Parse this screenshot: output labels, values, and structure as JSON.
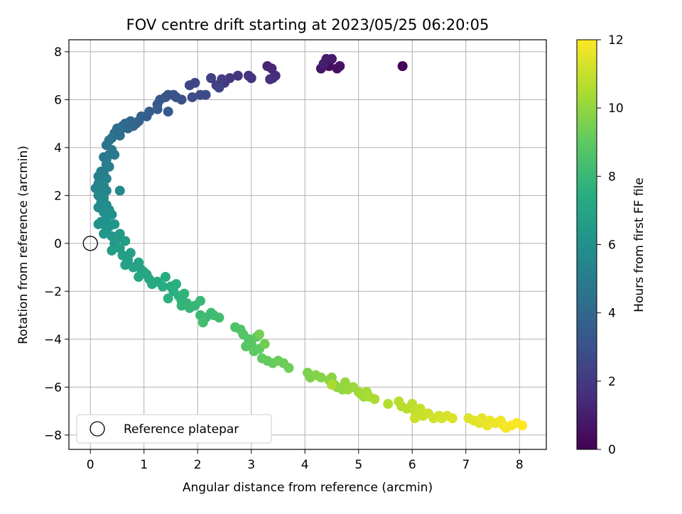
{
  "chart_data": {
    "type": "scatter",
    "title": "FOV centre drift starting at 2023/05/25 06:20:05",
    "xlabel": "Angular distance from reference (arcmin)",
    "ylabel": "Rotation from reference (arcmin)",
    "xlim": [
      -0.4,
      8.5
    ],
    "ylim": [
      -8.6,
      8.5
    ],
    "xticks": [
      "0",
      "1",
      "2",
      "3",
      "4",
      "5",
      "6",
      "7",
      "8"
    ],
    "yticks": [
      "−8",
      "−6",
      "−4",
      "−2",
      "0",
      "2",
      "4",
      "6",
      "8"
    ],
    "grid": true,
    "legend_position": "lower-left",
    "reference_point": {
      "label": "Reference platepar",
      "x": 0.0,
      "y": 0.0
    },
    "colorbar": {
      "label": "Hours from first FF file",
      "range": [
        0,
        12
      ],
      "ticks": [
        "0",
        "2",
        "4",
        "6",
        "8",
        "10",
        "12"
      ],
      "colormap": "viridis"
    },
    "series": [
      {
        "points": [
          [
            5.82,
            7.4,
            0.1
          ],
          [
            4.45,
            7.4,
            0.4
          ],
          [
            4.6,
            7.3,
            0.5
          ],
          [
            4.65,
            7.4,
            0.6
          ],
          [
            4.3,
            7.3,
            0.7
          ],
          [
            4.5,
            7.7,
            0.8
          ],
          [
            4.4,
            7.7,
            0.9
          ],
          [
            4.35,
            7.5,
            1.0
          ],
          [
            3.3,
            7.4,
            1.2
          ],
          [
            3.38,
            7.3,
            1.3
          ],
          [
            3.45,
            7.0,
            1.4
          ],
          [
            3.4,
            6.9,
            1.5
          ],
          [
            3.35,
            6.85,
            1.6
          ],
          [
            3.0,
            6.9,
            1.7
          ],
          [
            2.95,
            7.0,
            1.8
          ],
          [
            2.75,
            7.0,
            1.9
          ],
          [
            2.6,
            6.9,
            2.0
          ],
          [
            2.5,
            6.7,
            2.05
          ],
          [
            2.45,
            6.85,
            2.1
          ],
          [
            2.35,
            6.6,
            2.2
          ],
          [
            2.25,
            6.9,
            2.3
          ],
          [
            2.4,
            6.5,
            2.4
          ],
          [
            1.95,
            6.7,
            2.5
          ],
          [
            1.85,
            6.6,
            2.6
          ],
          [
            2.05,
            6.2,
            2.7
          ],
          [
            2.15,
            6.2,
            2.75
          ],
          [
            1.9,
            6.1,
            2.8
          ],
          [
            1.7,
            6.0,
            2.9
          ],
          [
            1.55,
            6.2,
            3.0
          ],
          [
            1.6,
            6.1,
            3.05
          ],
          [
            1.45,
            6.2,
            3.1
          ],
          [
            1.4,
            6.1,
            3.2
          ],
          [
            1.3,
            6.0,
            3.25
          ],
          [
            1.25,
            5.8,
            3.3
          ],
          [
            1.45,
            5.5,
            3.4
          ],
          [
            1.25,
            5.6,
            3.5
          ],
          [
            1.1,
            5.5,
            3.55
          ],
          [
            1.05,
            5.3,
            3.6
          ],
          [
            0.95,
            5.3,
            3.7
          ],
          [
            0.85,
            5.0,
            3.75
          ],
          [
            0.9,
            5.1,
            3.8
          ],
          [
            0.8,
            4.9,
            3.85
          ],
          [
            0.75,
            5.1,
            3.9
          ],
          [
            0.7,
            4.8,
            4.0
          ],
          [
            0.65,
            5.0,
            4.05
          ],
          [
            0.6,
            4.9,
            4.1
          ],
          [
            0.55,
            4.7,
            4.2
          ],
          [
            0.5,
            4.8,
            4.3
          ],
          [
            0.45,
            4.6,
            4.35
          ],
          [
            0.55,
            4.5,
            4.4
          ],
          [
            0.4,
            4.4,
            4.5
          ],
          [
            0.35,
            4.3,
            4.55
          ],
          [
            0.3,
            4.1,
            4.6
          ],
          [
            0.4,
            3.9,
            4.7
          ],
          [
            0.35,
            3.7,
            4.75
          ],
          [
            0.25,
            3.6,
            4.8
          ],
          [
            0.3,
            3.5,
            4.85
          ],
          [
            0.45,
            3.7,
            4.9
          ],
          [
            0.3,
            3.3,
            4.95
          ],
          [
            0.2,
            3.0,
            5.0
          ],
          [
            0.25,
            2.9,
            5.05
          ],
          [
            0.35,
            3.2,
            5.1
          ],
          [
            0.15,
            2.8,
            5.15
          ],
          [
            0.2,
            2.6,
            5.2
          ],
          [
            0.3,
            2.7,
            5.25
          ],
          [
            0.15,
            2.5,
            5.3
          ],
          [
            0.1,
            2.3,
            5.35
          ],
          [
            0.25,
            2.4,
            5.4
          ],
          [
            0.2,
            2.2,
            5.45
          ],
          [
            0.3,
            2.2,
            5.5
          ],
          [
            0.55,
            2.2,
            5.55
          ],
          [
            0.15,
            2.0,
            5.6
          ],
          [
            0.25,
            1.9,
            5.65
          ],
          [
            0.2,
            1.7,
            5.7
          ],
          [
            0.3,
            1.6,
            5.75
          ],
          [
            0.15,
            1.5,
            5.8
          ],
          [
            0.35,
            1.4,
            5.85
          ],
          [
            0.25,
            1.3,
            5.9
          ],
          [
            0.4,
            1.2,
            5.95
          ],
          [
            0.3,
            1.0,
            6.0
          ],
          [
            0.2,
            0.9,
            6.05
          ],
          [
            0.15,
            0.8,
            6.1
          ],
          [
            0.35,
            0.7,
            6.15
          ],
          [
            0.45,
            0.8,
            6.2
          ],
          [
            0.3,
            0.6,
            6.25
          ],
          [
            0.25,
            0.4,
            6.3
          ],
          [
            0.4,
            0.3,
            6.35
          ],
          [
            0.55,
            0.4,
            6.4
          ],
          [
            0.5,
            0.2,
            6.45
          ],
          [
            0.45,
            0.0,
            6.5
          ],
          [
            0.65,
            0.1,
            6.55
          ],
          [
            0.4,
            -0.3,
            6.6
          ],
          [
            0.55,
            -0.2,
            6.65
          ],
          [
            0.6,
            -0.5,
            6.7
          ],
          [
            0.75,
            -0.4,
            6.75
          ],
          [
            0.7,
            -0.7,
            6.8
          ],
          [
            0.65,
            -0.9,
            6.85
          ],
          [
            0.8,
            -1.0,
            6.9
          ],
          [
            0.9,
            -0.8,
            6.95
          ],
          [
            0.95,
            -1.1,
            7.0
          ],
          [
            1.0,
            -1.2,
            7.05
          ],
          [
            1.05,
            -1.3,
            7.1
          ],
          [
            0.9,
            -1.4,
            7.15
          ],
          [
            1.1,
            -1.5,
            7.2
          ],
          [
            1.15,
            -1.7,
            7.25
          ],
          [
            1.25,
            -1.6,
            7.3
          ],
          [
            1.35,
            -1.8,
            7.35
          ],
          [
            1.4,
            -1.4,
            7.4
          ],
          [
            1.5,
            -1.8,
            7.45
          ],
          [
            1.55,
            -2.0,
            7.5
          ],
          [
            1.6,
            -1.7,
            7.55
          ],
          [
            1.45,
            -2.3,
            7.6
          ],
          [
            1.65,
            -2.2,
            7.65
          ],
          [
            1.7,
            -2.4,
            7.7
          ],
          [
            1.75,
            -2.1,
            7.75
          ],
          [
            1.8,
            -2.5,
            7.8
          ],
          [
            1.7,
            -2.6,
            7.85
          ],
          [
            1.85,
            -2.7,
            7.9
          ],
          [
            1.95,
            -2.6,
            7.95
          ],
          [
            2.05,
            -2.4,
            8.0
          ],
          [
            2.05,
            -3.0,
            8.05
          ],
          [
            2.15,
            -3.1,
            8.1
          ],
          [
            2.25,
            -2.9,
            8.15
          ],
          [
            2.3,
            -3.0,
            8.2
          ],
          [
            2.4,
            -3.1,
            8.25
          ],
          [
            2.1,
            -3.3,
            8.3
          ],
          [
            2.7,
            -3.5,
            8.6
          ],
          [
            2.8,
            -3.6,
            8.65
          ],
          [
            2.85,
            -3.8,
            8.7
          ],
          [
            2.95,
            -4.0,
            8.75
          ],
          [
            2.9,
            -4.3,
            8.8
          ],
          [
            3.0,
            -4.2,
            8.85
          ],
          [
            3.1,
            -3.9,
            8.9
          ],
          [
            3.05,
            -4.5,
            8.95
          ],
          [
            3.15,
            -4.4,
            9.0
          ],
          [
            3.2,
            -4.8,
            9.05
          ],
          [
            3.3,
            -4.9,
            9.1
          ],
          [
            3.4,
            -5.0,
            9.15
          ],
          [
            3.5,
            -4.9,
            9.2
          ],
          [
            3.6,
            -5.0,
            9.25
          ],
          [
            3.7,
            -5.2,
            9.3
          ],
          [
            3.25,
            -4.2,
            9.35
          ],
          [
            3.15,
            -3.8,
            9.4
          ],
          [
            4.05,
            -5.4,
            9.6
          ],
          [
            4.1,
            -5.6,
            9.65
          ],
          [
            4.2,
            -5.5,
            9.7
          ],
          [
            4.3,
            -5.6,
            9.75
          ],
          [
            4.45,
            -5.7,
            9.8
          ],
          [
            4.5,
            -5.6,
            9.85
          ],
          [
            4.55,
            -5.9,
            9.9
          ],
          [
            4.6,
            -6.0,
            9.95
          ],
          [
            4.7,
            -6.1,
            10.0
          ],
          [
            4.75,
            -5.8,
            10.05
          ],
          [
            4.8,
            -6.1,
            10.1
          ],
          [
            4.9,
            -6.0,
            10.15
          ],
          [
            5.0,
            -6.2,
            10.2
          ],
          [
            5.05,
            -6.3,
            10.25
          ],
          [
            5.1,
            -6.4,
            10.3
          ],
          [
            5.15,
            -6.2,
            10.35
          ],
          [
            5.2,
            -6.4,
            10.4
          ],
          [
            5.3,
            -6.5,
            10.45
          ],
          [
            4.5,
            -5.9,
            10.5
          ],
          [
            5.55,
            -6.7,
            10.6
          ],
          [
            5.75,
            -6.6,
            10.65
          ],
          [
            5.8,
            -6.8,
            10.7
          ],
          [
            5.9,
            -6.9,
            10.75
          ],
          [
            6.0,
            -6.7,
            10.8
          ],
          [
            6.05,
            -7.0,
            10.85
          ],
          [
            6.1,
            -7.1,
            10.9
          ],
          [
            6.15,
            -6.9,
            10.95
          ],
          [
            6.2,
            -7.2,
            11.0
          ],
          [
            6.05,
            -7.3,
            11.05
          ],
          [
            6.3,
            -7.1,
            11.1
          ],
          [
            6.4,
            -7.3,
            11.15
          ],
          [
            6.5,
            -7.2,
            11.2
          ],
          [
            6.55,
            -7.3,
            11.25
          ],
          [
            6.65,
            -7.2,
            11.3
          ],
          [
            6.75,
            -7.3,
            11.35
          ],
          [
            7.05,
            -7.3,
            11.4
          ],
          [
            7.15,
            -7.4,
            11.45
          ],
          [
            7.25,
            -7.5,
            11.5
          ],
          [
            7.3,
            -7.3,
            11.55
          ],
          [
            7.4,
            -7.6,
            11.6
          ],
          [
            7.45,
            -7.4,
            11.65
          ],
          [
            7.55,
            -7.5,
            11.7
          ],
          [
            7.65,
            -7.4,
            11.75
          ],
          [
            7.7,
            -7.6,
            11.8
          ],
          [
            7.75,
            -7.7,
            11.85
          ],
          [
            7.85,
            -7.6,
            11.9
          ],
          [
            7.95,
            -7.5,
            11.95
          ],
          [
            8.05,
            -7.6,
            12.0
          ]
        ]
      }
    ]
  }
}
